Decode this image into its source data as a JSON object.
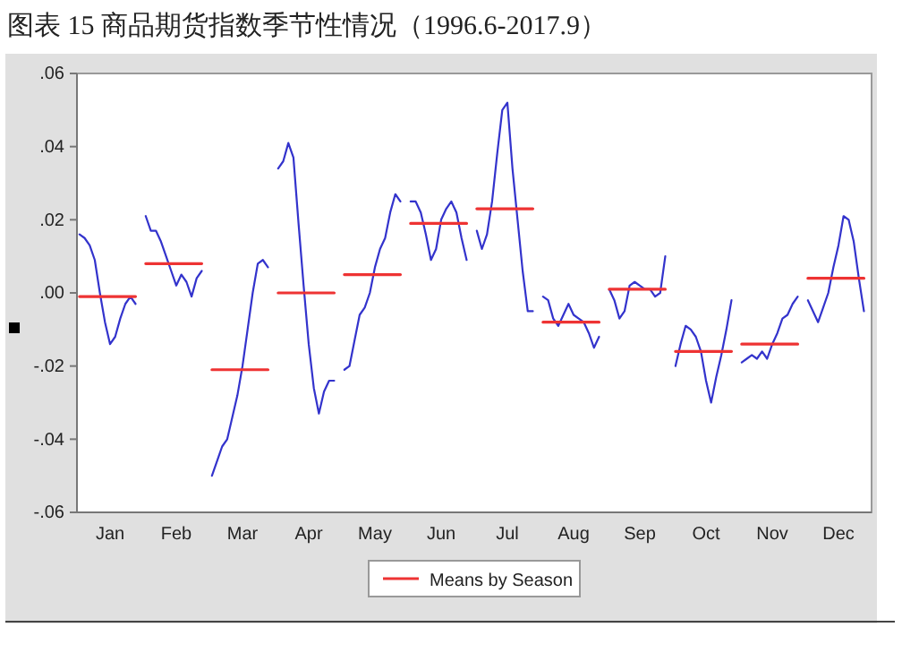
{
  "chart_data": {
    "type": "line",
    "title": "图表 15 商品期货指数季节性情况（1996.6-2017.9）",
    "categories": [
      null,
      null,
      null,
      null,
      null,
      null,
      "Jan",
      null,
      null,
      null,
      null,
      null,
      null,
      null,
      null,
      null,
      null,
      null,
      null,
      "Feb",
      null,
      null,
      null,
      null,
      null,
      null,
      null,
      null,
      null,
      null,
      null,
      null,
      "Mar",
      null,
      null,
      null,
      null,
      null,
      null,
      null,
      null,
      null,
      null,
      null,
      null,
      "Apr",
      null,
      null,
      null,
      null,
      null,
      null,
      null,
      null,
      null,
      null,
      null,
      null,
      "May",
      null,
      null,
      null,
      null,
      null,
      null,
      null,
      null,
      null,
      null,
      null,
      null,
      "Jun",
      null,
      null,
      null,
      null,
      null,
      null,
      null,
      null,
      null,
      null,
      null,
      null,
      "Jul",
      null,
      null,
      null,
      null,
      null,
      null,
      null,
      null,
      null,
      null,
      null,
      null,
      "Aug",
      null,
      null,
      null,
      null,
      null,
      null,
      null,
      null,
      null,
      null,
      null,
      null,
      "Sep",
      null,
      null,
      null,
      null,
      null,
      null,
      null,
      null,
      null,
      null,
      null,
      null,
      "Oct",
      null,
      null,
      null,
      null,
      null,
      null,
      null,
      null,
      null,
      null,
      null,
      null,
      "Nov",
      null,
      null,
      null,
      null,
      null,
      null,
      null,
      null,
      null,
      null,
      null,
      null,
      "Dec",
      null,
      null,
      null,
      null,
      null,
      null
    ],
    "ylim": [
      -0.06,
      0.06
    ],
    "yticks": [
      {
        "value": -0.06,
        "label": "-.06"
      },
      {
        "value": -0.04,
        "label": "-.04"
      },
      {
        "value": -0.02,
        "label": "-.02"
      },
      {
        "value": 0,
        "label": ".00"
      },
      {
        "value": 0.02,
        "label": ".02"
      },
      {
        "value": 0.04,
        "label": ".04"
      },
      {
        "value": 0.06,
        "label": ".06"
      }
    ],
    "legend": "bottom",
    "series": [
      {
        "color": "#3333cc",
        "values": [
          0.016,
          0.015,
          0.013,
          0.009,
          0,
          -0.008,
          -0.014,
          -0.012,
          -0.007,
          -0.003,
          -0.001,
          -0.003,
          null,
          0.021,
          0.017,
          0.017,
          0.014,
          0.01,
          0.006,
          0.002,
          0.005,
          0.003,
          -0.001,
          0.004,
          0.006,
          null,
          -0.05,
          -0.046,
          -0.042,
          -0.04,
          -0.034,
          -0.028,
          -0.02,
          -0.01,
          0,
          0.008,
          0.009,
          0.007,
          null,
          0.034,
          0.036,
          0.041,
          0.037,
          0.019,
          0.002,
          -0.014,
          -0.026,
          -0.033,
          -0.027,
          -0.024,
          -0.024,
          null,
          -0.021,
          -0.02,
          -0.013,
          -0.006,
          -0.004,
          0,
          0.007,
          0.012,
          0.015,
          0.022,
          0.027,
          0.025,
          null,
          0.025,
          0.025,
          0.022,
          0.016,
          0.009,
          0.012,
          0.02,
          0.023,
          0.025,
          0.022,
          0.015,
          0.009,
          null,
          0.017,
          0.012,
          0.016,
          0.025,
          0.038,
          0.05,
          0.052,
          0.034,
          0.02,
          0.006,
          -0.005,
          -0.005,
          null,
          -0.001,
          -0.002,
          -0.007,
          -0.009,
          -0.006,
          -0.003,
          -0.006,
          -0.007,
          -0.008,
          -0.011,
          -0.015,
          -0.012,
          null,
          0.001,
          -0.002,
          -0.007,
          -0.005,
          0.002,
          0.003,
          0.002,
          0.001,
          0.001,
          -0.001,
          0,
          0.01,
          null,
          -0.02,
          -0.014,
          -0.009,
          -0.01,
          -0.012,
          -0.016,
          -0.024,
          -0.03,
          -0.023,
          -0.017,
          -0.01,
          -0.002,
          null,
          -0.019,
          -0.018,
          -0.017,
          -0.018,
          -0.016,
          -0.018,
          -0.014,
          -0.011,
          -0.007,
          -0.006,
          -0.003,
          -0.001,
          null,
          -0.002,
          -0.005,
          -0.008,
          -0.004,
          0,
          0.007,
          0.013,
          0.021,
          0.02,
          0.014,
          0.004,
          -0.005,
          null
        ]
      },
      {
        "name": "Means by Season",
        "color": "#ee3333",
        "values": [
          -0.001,
          -0.001,
          -0.001,
          -0.001,
          -0.001,
          -0.001,
          -0.001,
          -0.001,
          -0.001,
          -0.001,
          -0.001,
          -0.001,
          null,
          0.008,
          0.008,
          0.008,
          0.008,
          0.008,
          0.008,
          0.008,
          0.008,
          0.008,
          0.008,
          0.008,
          0.008,
          null,
          -0.021,
          -0.021,
          -0.021,
          -0.021,
          -0.021,
          -0.021,
          -0.021,
          -0.021,
          -0.021,
          -0.021,
          -0.021,
          -0.021,
          null,
          0,
          0,
          0,
          0,
          0,
          0,
          0,
          0,
          0,
          0,
          0,
          0,
          null,
          0.005,
          0.005,
          0.005,
          0.005,
          0.005,
          0.005,
          0.005,
          0.005,
          0.005,
          0.005,
          0.005,
          0.005,
          null,
          0.019,
          0.019,
          0.019,
          0.019,
          0.019,
          0.019,
          0.019,
          0.019,
          0.019,
          0.019,
          0.019,
          0.019,
          null,
          0.023,
          0.023,
          0.023,
          0.023,
          0.023,
          0.023,
          0.023,
          0.023,
          0.023,
          0.023,
          0.023,
          0.023,
          null,
          -0.008,
          -0.008,
          -0.008,
          -0.008,
          -0.008,
          -0.008,
          -0.008,
          -0.008,
          -0.008,
          -0.008,
          -0.008,
          -0.008,
          null,
          0.001,
          0.001,
          0.001,
          0.001,
          0.001,
          0.001,
          0.001,
          0.001,
          0.001,
          0.001,
          0.001,
          0.001,
          null,
          -0.016,
          -0.016,
          -0.016,
          -0.016,
          -0.016,
          -0.016,
          -0.016,
          -0.016,
          -0.016,
          -0.016,
          -0.016,
          -0.016,
          null,
          -0.014,
          -0.014,
          -0.014,
          -0.014,
          -0.014,
          -0.014,
          -0.014,
          -0.014,
          -0.014,
          -0.014,
          -0.014,
          -0.014,
          null,
          0.004,
          0.004,
          0.004,
          0.004,
          0.004,
          0.004,
          0.004,
          0.004,
          0.004,
          0.004,
          0.004,
          0.004,
          null
        ]
      }
    ]
  }
}
